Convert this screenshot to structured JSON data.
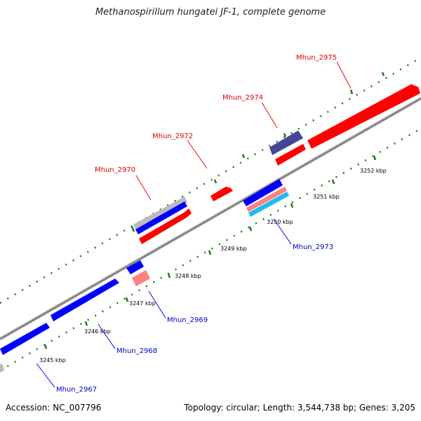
{
  "title": "Methanospirillum hungatei JF-1, complete genome",
  "footer": {
    "accession": "Accession: NC_007796",
    "topology": "Topology: circular; Length: 3,544,738 bp; Genes: 3,205"
  },
  "colors": {
    "forward_gene": "#ff0000",
    "reverse_gene": "#0000ff",
    "forward_other": "#ff8080",
    "reverse_other": "#22bbee",
    "hypothetical": "#444499",
    "pseudo": "#bbbbbb",
    "backbone": "#999999",
    "ticks": "#1e7a1e"
  },
  "scale_labels": [
    "3245 kbp",
    "3246 kbp",
    "3247 kbp",
    "3248 kbp",
    "3249 kbp",
    "3250 kbp",
    "3251 kbp",
    "3252 kbp"
  ],
  "forward_labels": [
    "Mhun_2970",
    "Mhun_2972",
    "Mhun_2974",
    "Mhun_2975"
  ],
  "reverse_labels": [
    "Mhun_2967",
    "Mhun_2968",
    "Mhun_2969",
    "Mhun_2973"
  ]
}
